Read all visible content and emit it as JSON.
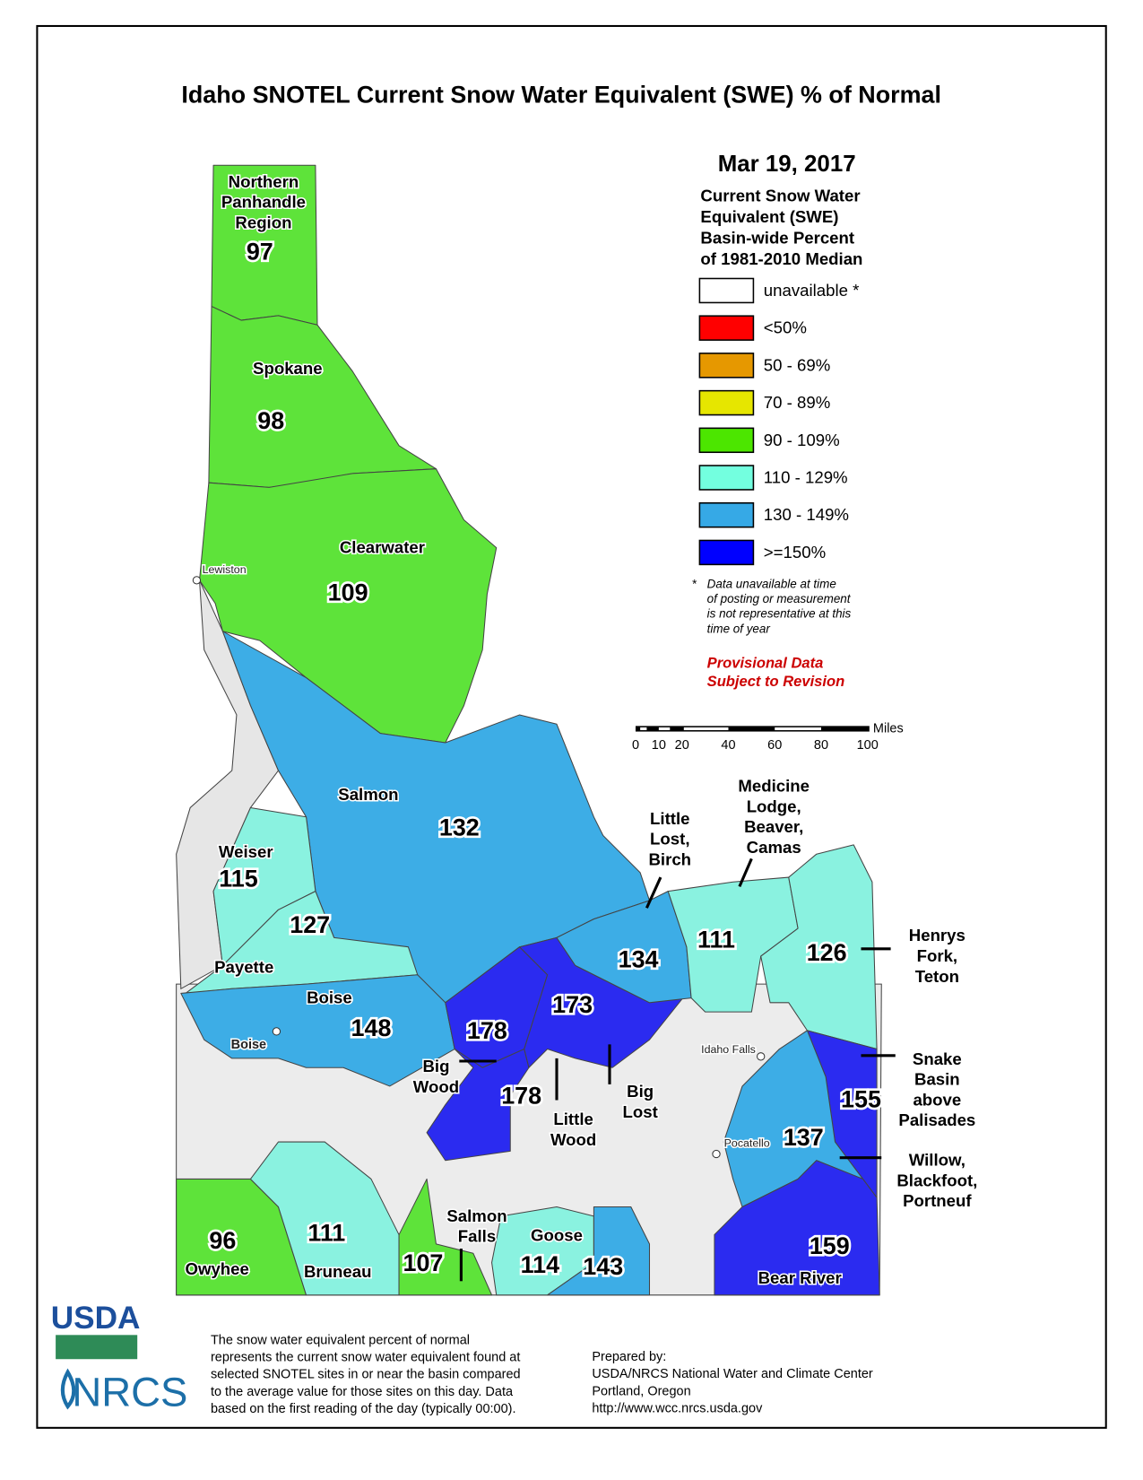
{
  "title": "Idaho SNOTEL Current Snow Water Equivalent (SWE) % of Normal",
  "legend": {
    "date": "Mar 19, 2017",
    "heading": [
      "Current Snow Water",
      "Equivalent (SWE)",
      "Basin-wide Percent",
      "of 1981-2010 Median"
    ],
    "items": [
      {
        "label": "unavailable *",
        "color": "#ffffff"
      },
      {
        "label": "<50%",
        "color": "#ff0000"
      },
      {
        "label": "50 - 69%",
        "color": "#e69800"
      },
      {
        "label": "70 - 89%",
        "color": "#e6e600"
      },
      {
        "label": "90 - 109%",
        "color": "#4ce600"
      },
      {
        "label": "110 - 129%",
        "color": "#73ffdf"
      },
      {
        "label": "130 - 149%",
        "color": "#36a9e6"
      },
      {
        "label": ">=150%",
        "color": "#0000ff"
      }
    ],
    "note_mark": "*",
    "note": [
      "Data unavailable at time",
      "of posting or measurement",
      "is not representative at this",
      "time of year"
    ],
    "provisional": [
      "Provisional Data",
      "Subject to Revision"
    ]
  },
  "scale_bar": {
    "ticks": [
      "0",
      "10",
      "20",
      "40",
      "60",
      "80",
      "100"
    ],
    "unit": "Miles"
  },
  "regions": [
    {
      "name": [
        "Northern",
        "Panhandle",
        "Region"
      ],
      "value": 97,
      "color": "#5ee33a"
    },
    {
      "name": [
        "Spokane"
      ],
      "value": 98,
      "color": "#5ee33a"
    },
    {
      "name": [
        "Clearwater"
      ],
      "value": 109,
      "color": "#5ee33a"
    },
    {
      "name": [
        "Salmon"
      ],
      "value": 132,
      "color": "#3dade6"
    },
    {
      "name": [
        "Weiser"
      ],
      "value": 115,
      "color": "#8af2e0"
    },
    {
      "name": [
        "Payette"
      ],
      "value": 127,
      "color": "#8af2e0"
    },
    {
      "name": [
        "Boise"
      ],
      "value": 148,
      "color": "#3dade6"
    },
    {
      "name": [
        "Big",
        "Wood"
      ],
      "value": 178,
      "color": "#2b2bf0"
    },
    {
      "name": [
        "Little",
        "Wood"
      ],
      "value": 178,
      "color": "#2b2bf0"
    },
    {
      "name": [
        "Big",
        "Lost"
      ],
      "value": 173,
      "color": "#2b2bf0"
    },
    {
      "name": [
        "Little",
        "Lost,",
        "Birch"
      ],
      "value": 134,
      "color": "#3dade6"
    },
    {
      "name": [
        "Medicine",
        "Lodge,",
        "Beaver,",
        "Camas"
      ],
      "value": 111,
      "color": "#8af2e0"
    },
    {
      "name": [
        "Henrys",
        "Fork,",
        "Teton"
      ],
      "value": 126,
      "color": "#8af2e0"
    },
    {
      "name": [
        "Snake",
        "Basin",
        "above",
        "Palisades"
      ],
      "value": 155,
      "color": "#2b2bf0"
    },
    {
      "name": [
        "Willow,",
        "Blackfoot,",
        "Portneuf"
      ],
      "value": 137,
      "color": "#3dade6"
    },
    {
      "name": [
        "Bear River"
      ],
      "value": 159,
      "color": "#2b2bf0"
    },
    {
      "name": [
        "Owyhee"
      ],
      "value": 96,
      "color": "#5ee33a"
    },
    {
      "name": [
        "Bruneau"
      ],
      "value": 111,
      "color": "#8af2e0"
    },
    {
      "name": [
        "Salmon",
        "Falls"
      ],
      "value": 107,
      "color": "#5ee33a"
    },
    {
      "name": [
        "Goose"
      ],
      "value": 114,
      "color": "#8af2e0"
    },
    {
      "value": 143,
      "color": "#3dade6"
    }
  ],
  "cities": [
    "Lewiston",
    "Boise",
    "Idaho Falls",
    "Pocatello"
  ],
  "footer": {
    "description": [
      "The snow water equivalent percent of normal",
      "represents the current snow water equivalent found at",
      "selected SNOTEL sites in or near the basin compared",
      "to the average value for those sites on this day. Data",
      "based on the first reading of the day (typically 00:00)."
    ],
    "prepared": [
      "Prepared by:",
      "USDA/NRCS National Water and Climate Center",
      "Portland, Oregon",
      "http://www.wcc.nrcs.usda.gov"
    ]
  },
  "logo": {
    "usda": "USDA",
    "nrcs": "NRCS"
  }
}
